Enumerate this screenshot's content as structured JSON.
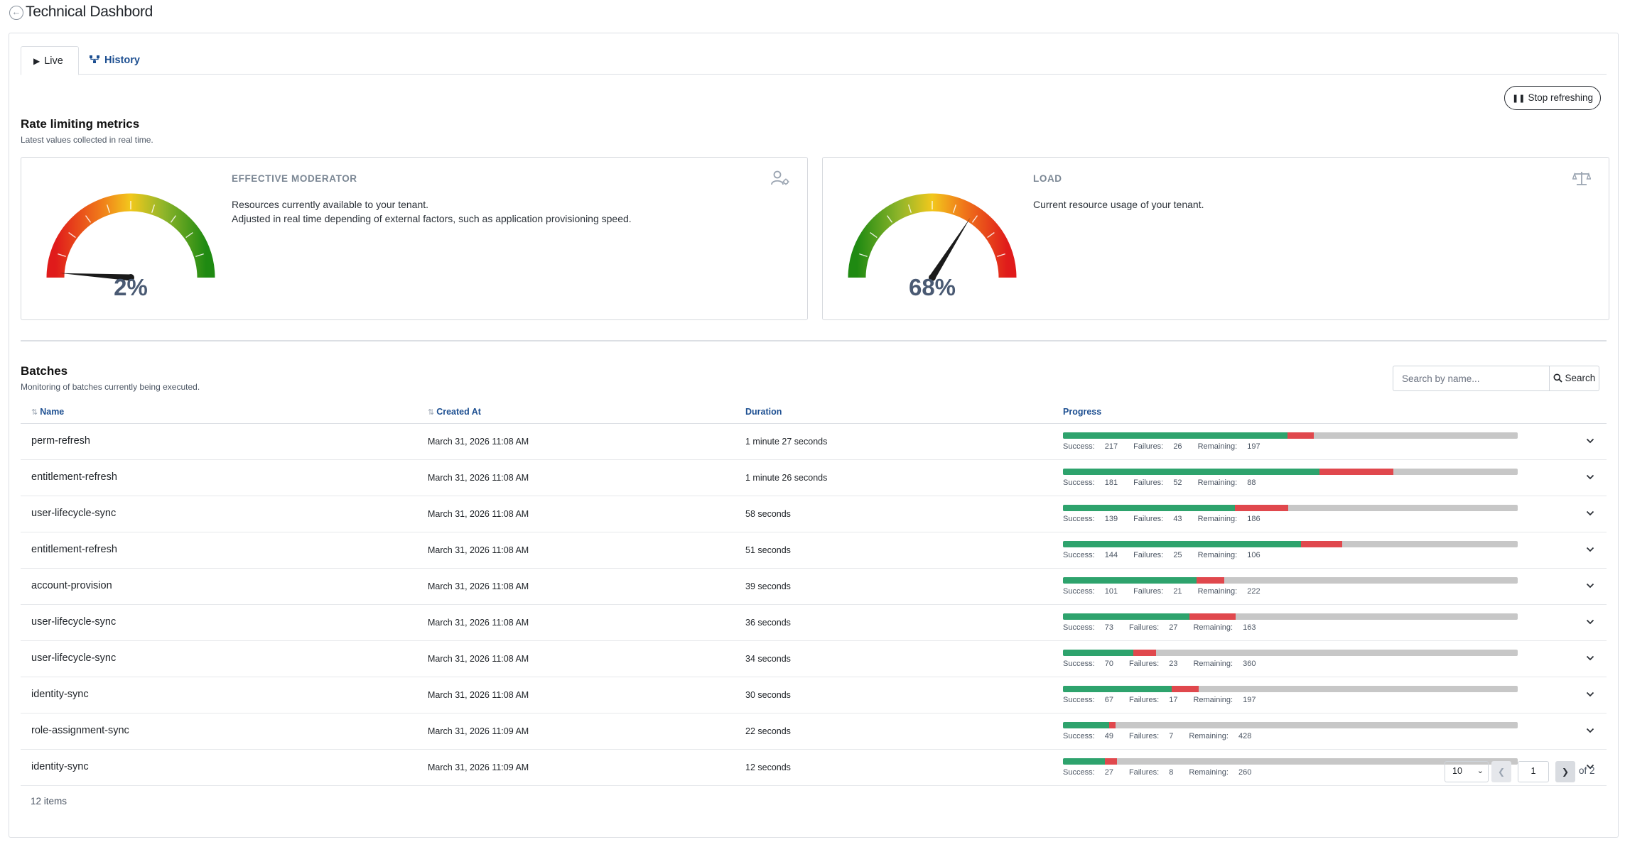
{
  "header": {
    "title": "Technical Dashbord",
    "back_icon": "arrow-left-circle-icon"
  },
  "tabs": [
    {
      "label": "Live",
      "icon": "play-icon",
      "active": true
    },
    {
      "label": "History",
      "icon": "sitemap-icon",
      "active": false
    }
  ],
  "toolbar": {
    "stop_label": "Stop refreshing",
    "stop_icon": "pause-icon"
  },
  "rate": {
    "title": "Rate limiting metrics",
    "subtitle": "Latest values collected in real time.",
    "moderator": {
      "label": "EFFECTIVE MODERATOR",
      "desc1": "Resources currently available to your tenant.",
      "desc2": "Adjusted in real time depending of external factors, such as application provisioning speed.",
      "value_text": "2%",
      "value": 2,
      "scale": "red-to-green",
      "icon": "user-settings-icon"
    },
    "load": {
      "label": "LOAD",
      "desc1": "Current resource usage of your tenant.",
      "value_text": "68%",
      "value": 68,
      "scale": "green-to-red",
      "icon": "balance-scale-icon"
    }
  },
  "batches": {
    "title": "Batches",
    "subtitle": "Monitoring of batches currently being executed.",
    "search_placeholder": "Search by name...",
    "search_label": "Search",
    "columns": {
      "name": "Name",
      "created": "Created At",
      "duration": "Duration",
      "progress": "Progress"
    },
    "rows": [
      {
        "name": "perm-refresh",
        "created": "March 31, 2026 11:08 AM",
        "duration": "1 minute 27 seconds",
        "success": 217,
        "failures": 26,
        "remaining": 197
      },
      {
        "name": "entitlement-refresh",
        "created": "March 31, 2026 11:08 AM",
        "duration": "1 minute 26 seconds",
        "success": 181,
        "failures": 52,
        "remaining": 88
      },
      {
        "name": "user-lifecycle-sync",
        "created": "March 31, 2026 11:08 AM",
        "duration": "58 seconds",
        "success": 139,
        "failures": 43,
        "remaining": 186
      },
      {
        "name": "entitlement-refresh",
        "created": "March 31, 2026 11:08 AM",
        "duration": "51 seconds",
        "success": 144,
        "failures": 25,
        "remaining": 106
      },
      {
        "name": "account-provision",
        "created": "March 31, 2026 11:08 AM",
        "duration": "39 seconds",
        "success": 101,
        "failures": 21,
        "remaining": 222
      },
      {
        "name": "user-lifecycle-sync",
        "created": "March 31, 2026 11:08 AM",
        "duration": "36 seconds",
        "success": 73,
        "failures": 27,
        "remaining": 163
      },
      {
        "name": "user-lifecycle-sync",
        "created": "March 31, 2026 11:08 AM",
        "duration": "34 seconds",
        "success": 70,
        "failures": 23,
        "remaining": 360
      },
      {
        "name": "identity-sync",
        "created": "March 31, 2026 11:08 AM",
        "duration": "30 seconds",
        "success": 67,
        "failures": 17,
        "remaining": 197
      },
      {
        "name": "role-assignment-sync",
        "created": "March 31, 2026 11:09 AM",
        "duration": "22 seconds",
        "success": 49,
        "failures": 7,
        "remaining": 428
      },
      {
        "name": "identity-sync",
        "created": "March 31, 2026 11:09 AM",
        "duration": "12 seconds",
        "success": 27,
        "failures": 8,
        "remaining": 260
      }
    ],
    "progress_labels": {
      "success": "Success:",
      "failures": "Failures:",
      "remaining": "Remaining:"
    },
    "colors": {
      "success": "#2ea36d",
      "failure": "#e0484d",
      "remaining": "#c7c7c7"
    },
    "footer": {
      "items": "12 items",
      "page_size": "10",
      "page": "1",
      "of": "of 2"
    }
  }
}
